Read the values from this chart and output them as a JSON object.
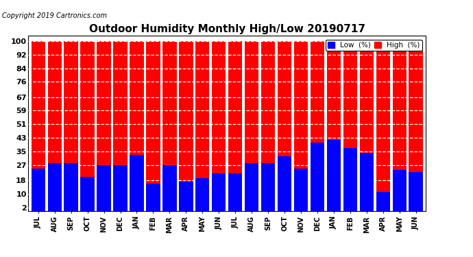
{
  "title": "Outdoor Humidity Monthly High/Low 20190717",
  "copyright": "Copyright 2019 Cartronics.com",
  "months": [
    "JUL",
    "AUG",
    "SEP",
    "OCT",
    "NOV",
    "DEC",
    "JAN",
    "FEB",
    "MAR",
    "APR",
    "MAY",
    "JUN",
    "JUL",
    "AUG",
    "SEP",
    "OCT",
    "NOV",
    "DEC",
    "JAN",
    "FEB",
    "MAR",
    "APR",
    "MAY",
    "JUN"
  ],
  "high_values": [
    100,
    100,
    100,
    100,
    100,
    100,
    100,
    100,
    100,
    100,
    100,
    100,
    100,
    100,
    100,
    100,
    100,
    100,
    100,
    100,
    100,
    100,
    100,
    100
  ],
  "low_values": [
    25,
    28,
    28,
    20,
    27,
    27,
    33,
    16,
    27,
    17,
    19,
    22,
    22,
    28,
    28,
    32,
    25,
    40,
    42,
    37,
    34,
    11,
    24,
    23
  ],
  "high_color": "#FF0000",
  "low_color": "#0000FF",
  "bg_color": "#FFFFFF",
  "yticks": [
    2,
    10,
    18,
    27,
    35,
    43,
    51,
    59,
    67,
    76,
    84,
    92,
    100
  ],
  "ylim": [
    0,
    103
  ],
  "grid_color": "#AAAAAA",
  "title_fontsize": 11,
  "copyright_fontsize": 7,
  "legend_low_label": "Low  (%)",
  "legend_high_label": "High  (%)",
  "legend_fontsize": 7.5,
  "xtick_fontsize": 7,
  "ytick_fontsize": 8
}
